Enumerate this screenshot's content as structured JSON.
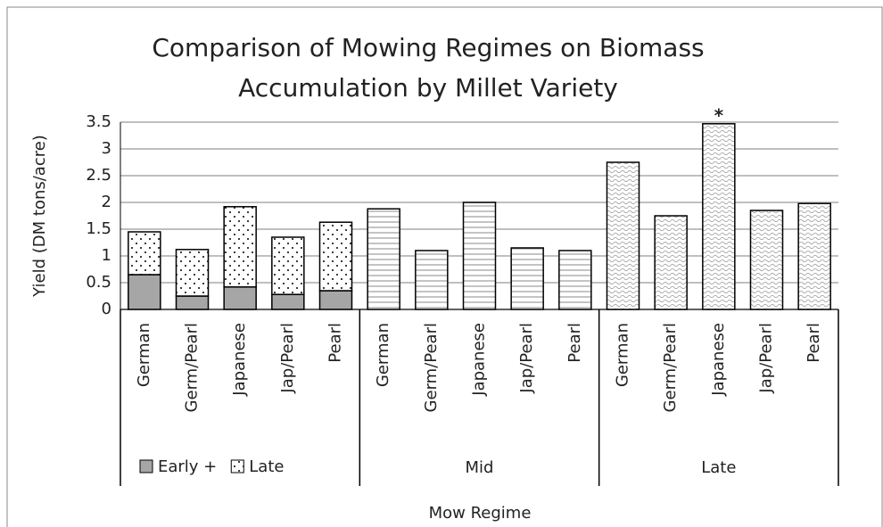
{
  "chart_data": {
    "type": "stacked_bar",
    "title": [
      "Comparison of Mowing Regimes on Biomass",
      "Accumulation by Millet Variety"
    ],
    "y_label": "Yield (DM tons/acre)",
    "x_label": "Mow Regime",
    "categories": [
      "German",
      "Germ/Pearl",
      "Japanese",
      "Jap/Pearl",
      "Pearl",
      "German",
      "Germ/Pearl",
      "Japanese",
      "Jap/Pearl",
      "Pearl",
      "German",
      "Germ/Pearl",
      "Japanese",
      "Jap/Pearl",
      "Pearl"
    ],
    "group_labels": [
      null,
      "Mid",
      "Late"
    ],
    "group_size": 5,
    "series": [
      {
        "name": "Early +",
        "color": "#a6a6a6",
        "pattern": "solid",
        "values": [
          0.65,
          0.25,
          0.42,
          0.28,
          0.35,
          null,
          null,
          null,
          null,
          null,
          null,
          null,
          null,
          null,
          null
        ]
      },
      {
        "name": "Late",
        "color": "#000000",
        "pattern": "dots",
        "values": [
          0.8,
          0.87,
          1.5,
          1.07,
          1.28,
          null,
          null,
          null,
          null,
          null,
          null,
          null,
          null,
          null,
          null
        ]
      },
      {
        "color": "#7f7f7f",
        "pattern": "hlines",
        "values": [
          null,
          null,
          null,
          null,
          null,
          1.88,
          1.1,
          2.0,
          1.15,
          1.1,
          null,
          null,
          null,
          null,
          null
        ]
      },
      {
        "color": "#7f7f7f",
        "pattern": "waves",
        "values": [
          null,
          null,
          null,
          null,
          null,
          null,
          null,
          null,
          null,
          null,
          2.75,
          1.75,
          3.47,
          1.85,
          1.98
        ]
      }
    ],
    "annotations": [
      {
        "text": "*",
        "category": 12
      }
    ],
    "ylim": [
      0,
      3.5
    ],
    "yticks": [
      0,
      0.5,
      1,
      1.5,
      2,
      2.5,
      3,
      3.5
    ],
    "grid": true
  }
}
